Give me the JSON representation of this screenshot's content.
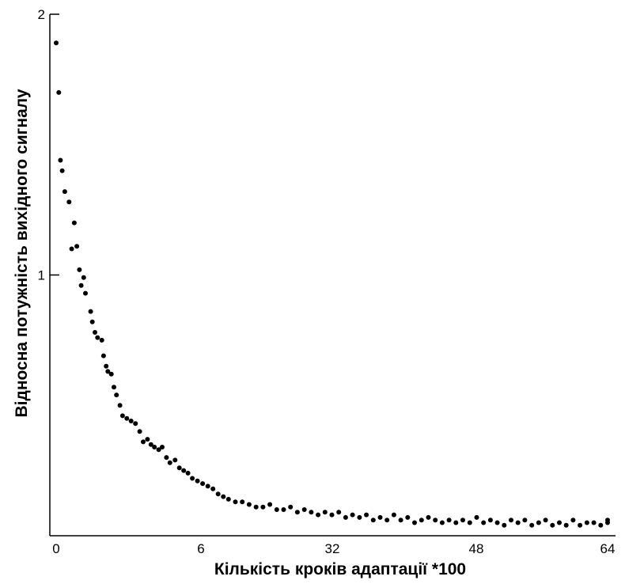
{
  "chart_data": {
    "type": "scatter",
    "title": "",
    "xlabel": "Кількість кроків адаптації *100",
    "ylabel": "Відносна потужність вихідного сигналу",
    "x_tick_labels": [
      "0",
      "6",
      "32",
      "48",
      "64"
    ],
    "y_tick_labels": [
      "1",
      "2"
    ],
    "ylim": [
      0,
      2
    ],
    "grid": false,
    "legend": "none",
    "marker_color": "#000000",
    "note": "x axis tick labels are non-uniform; x values below are expressed in tick-label units where ticks map linearly to indices 0..64 along the axis",
    "points": [
      [
        0.0,
        1.89
      ],
      [
        0.3,
        1.7
      ],
      [
        0.5,
        1.44
      ],
      [
        0.7,
        1.4
      ],
      [
        1.0,
        1.32
      ],
      [
        1.5,
        1.28
      ],
      [
        1.8,
        1.1
      ],
      [
        2.1,
        1.2
      ],
      [
        2.4,
        1.11
      ],
      [
        2.7,
        1.02
      ],
      [
        2.9,
        0.96
      ],
      [
        3.2,
        0.99
      ],
      [
        3.4,
        0.93
      ],
      [
        4.0,
        0.86
      ],
      [
        4.2,
        0.82
      ],
      [
        4.5,
        0.78
      ],
      [
        4.8,
        0.76
      ],
      [
        5.3,
        0.75
      ],
      [
        5.5,
        0.69
      ],
      [
        5.8,
        0.65
      ],
      [
        6.0,
        0.63
      ],
      [
        6.4,
        0.62
      ],
      [
        6.7,
        0.57
      ],
      [
        7.0,
        0.54
      ],
      [
        7.4,
        0.5
      ],
      [
        7.7,
        0.46
      ],
      [
        8.2,
        0.45
      ],
      [
        8.7,
        0.44
      ],
      [
        9.2,
        0.43
      ],
      [
        9.7,
        0.4
      ],
      [
        10.1,
        0.36
      ],
      [
        10.6,
        0.37
      ],
      [
        11.0,
        0.35
      ],
      [
        11.4,
        0.34
      ],
      [
        11.9,
        0.33
      ],
      [
        12.3,
        0.34
      ],
      [
        12.8,
        0.3
      ],
      [
        13.2,
        0.28
      ],
      [
        13.8,
        0.29
      ],
      [
        14.3,
        0.26
      ],
      [
        14.8,
        0.25
      ],
      [
        15.3,
        0.24
      ],
      [
        15.8,
        0.22
      ],
      [
        16.4,
        0.21
      ],
      [
        17.0,
        0.2
      ],
      [
        17.6,
        0.19
      ],
      [
        18.2,
        0.18
      ],
      [
        18.8,
        0.16
      ],
      [
        19.4,
        0.15
      ],
      [
        20.0,
        0.14
      ],
      [
        20.8,
        0.13
      ],
      [
        21.6,
        0.13
      ],
      [
        22.4,
        0.12
      ],
      [
        23.2,
        0.11
      ],
      [
        24.0,
        0.11
      ],
      [
        24.8,
        0.12
      ],
      [
        25.6,
        0.1
      ],
      [
        26.4,
        0.1
      ],
      [
        27.2,
        0.11
      ],
      [
        28.0,
        0.09
      ],
      [
        28.8,
        0.1
      ],
      [
        29.6,
        0.09
      ],
      [
        30.4,
        0.08
      ],
      [
        31.2,
        0.09
      ],
      [
        32.0,
        0.08
      ],
      [
        32.8,
        0.09
      ],
      [
        33.6,
        0.07
      ],
      [
        34.4,
        0.08
      ],
      [
        35.2,
        0.07
      ],
      [
        36.0,
        0.08
      ],
      [
        36.8,
        0.06
      ],
      [
        37.6,
        0.07
      ],
      [
        38.4,
        0.06
      ],
      [
        39.2,
        0.08
      ],
      [
        40.0,
        0.06
      ],
      [
        40.8,
        0.07
      ],
      [
        41.6,
        0.05
      ],
      [
        42.4,
        0.06
      ],
      [
        43.2,
        0.07
      ],
      [
        44.0,
        0.06
      ],
      [
        44.8,
        0.05
      ],
      [
        45.6,
        0.06
      ],
      [
        46.4,
        0.05
      ],
      [
        47.2,
        0.06
      ],
      [
        48.0,
        0.05
      ],
      [
        48.8,
        0.07
      ],
      [
        49.6,
        0.05
      ],
      [
        50.4,
        0.06
      ],
      [
        51.2,
        0.05
      ],
      [
        52.0,
        0.04
      ],
      [
        52.8,
        0.06
      ],
      [
        53.6,
        0.05
      ],
      [
        54.4,
        0.06
      ],
      [
        55.2,
        0.04
      ],
      [
        56.0,
        0.05
      ],
      [
        56.8,
        0.06
      ],
      [
        57.6,
        0.04
      ],
      [
        58.4,
        0.05
      ],
      [
        59.2,
        0.04
      ],
      [
        60.0,
        0.06
      ],
      [
        60.8,
        0.04
      ],
      [
        61.6,
        0.05
      ],
      [
        62.4,
        0.05
      ],
      [
        63.2,
        0.04
      ],
      [
        64.0,
        0.06
      ],
      [
        64.0,
        0.05
      ]
    ]
  }
}
